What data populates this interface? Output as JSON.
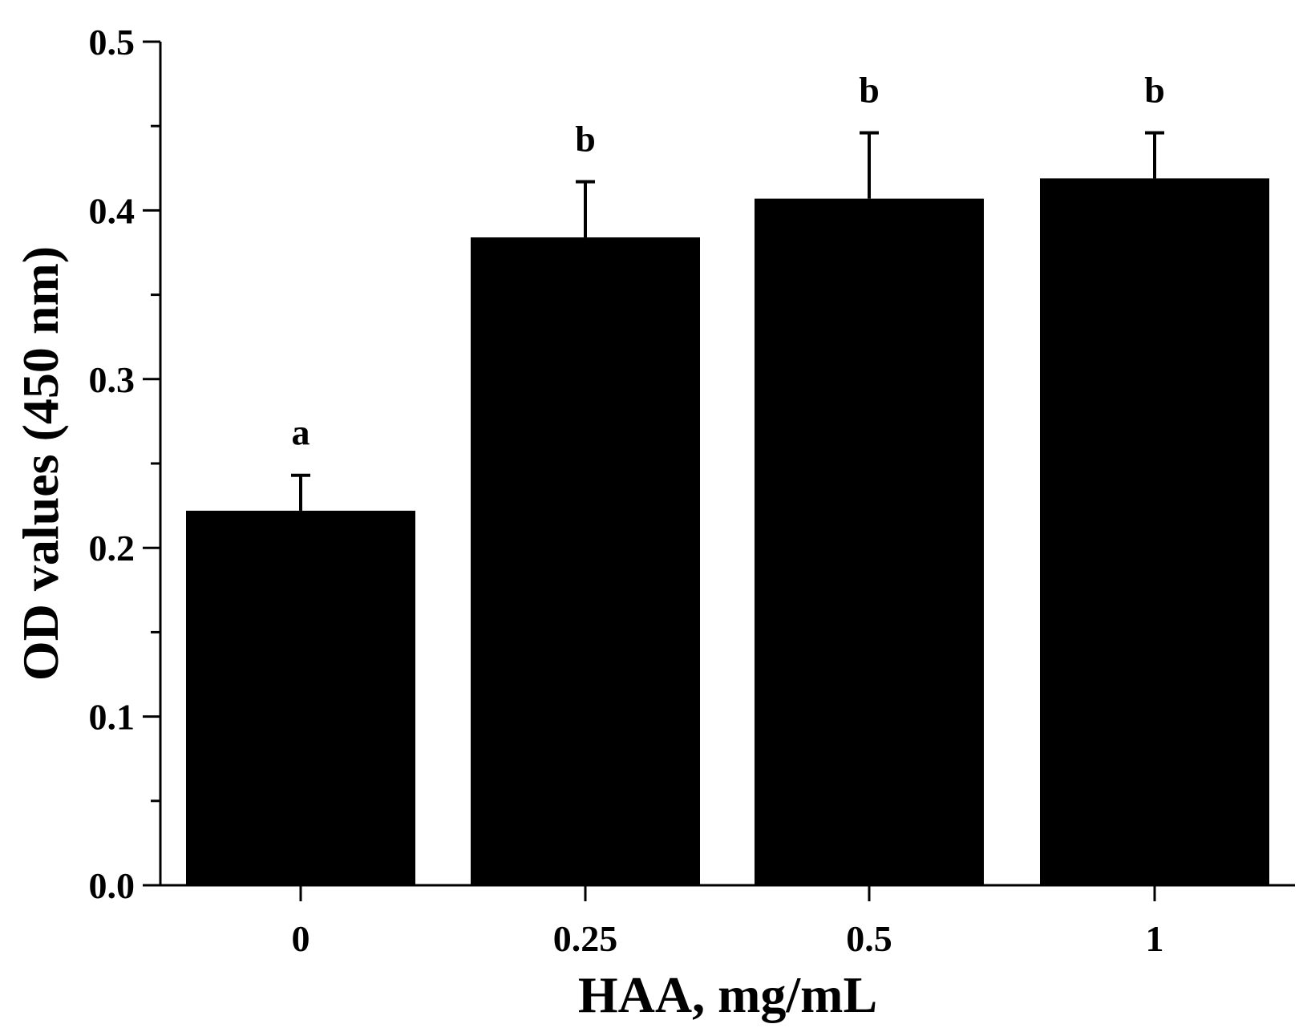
{
  "chart_data": {
    "type": "bar",
    "categories": [
      "0",
      "0.25",
      "0.5",
      "1"
    ],
    "values": [
      0.222,
      0.384,
      0.407,
      0.419
    ],
    "error_bars": [
      0.021,
      0.033,
      0.039,
      0.027
    ],
    "significance_labels": [
      "a",
      "b",
      "b",
      "b"
    ],
    "xlabel": "HAA, mg/mL",
    "ylabel": "OD values (450 nm)",
    "ylim": [
      0,
      0.5
    ],
    "yticks": [
      "0.0",
      "0.1",
      "0.2",
      "0.3",
      "0.4",
      "0.5"
    ],
    "ytick_values": [
      0,
      0.1,
      0.2,
      0.3,
      0.4,
      0.5
    ],
    "yminor_values": [
      0.05,
      0.15,
      0.25,
      0.35,
      0.45
    ],
    "bar_color": "#000000",
    "grid": false,
    "legend": "none"
  }
}
